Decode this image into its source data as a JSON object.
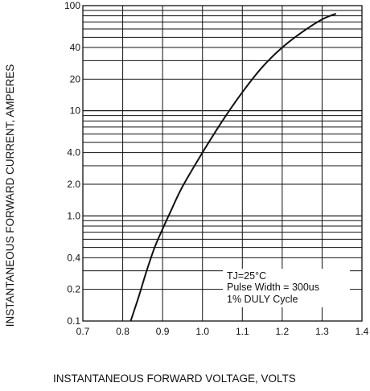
{
  "chart_data": {
    "type": "line",
    "xlabel": "INSTANTANEOUS FORWARD VOLTAGE, VOLTS",
    "ylabel": "INSTANTANEOUS FORWARD CURRENT, AMPERES",
    "x_scale": "linear",
    "y_scale": "log",
    "xlim": [
      0.7,
      1.4
    ],
    "ylim": [
      0.1,
      100
    ],
    "grid": true,
    "x_ticks": [
      "0.7",
      "0.8",
      "0.9",
      "1.0",
      "1.1",
      "1.2",
      "1.3",
      "1.4"
    ],
    "y_ticks": [
      {
        "value": 100,
        "label": "100"
      },
      {
        "value": 40,
        "label": "40"
      },
      {
        "value": 20,
        "label": "20"
      },
      {
        "value": 10,
        "label": "10"
      },
      {
        "value": 4,
        "label": "4.0"
      },
      {
        "value": 2,
        "label": "2.0"
      },
      {
        "value": 1,
        "label": "1.0"
      },
      {
        "value": 0.4,
        "label": "0.4"
      },
      {
        "value": 0.2,
        "label": "0.2"
      },
      {
        "value": 0.1,
        "label": "0.1"
      }
    ],
    "series": [
      {
        "x": [
          0.82,
          0.84,
          0.86,
          0.88,
          0.9,
          0.92,
          0.95,
          1.0,
          1.05,
          1.1,
          1.15,
          1.2,
          1.25,
          1.3,
          1.335
        ],
        "y": [
          0.1,
          0.17,
          0.3,
          0.5,
          0.75,
          1.1,
          1.9,
          4.0,
          8.0,
          15.0,
          26.0,
          40.0,
          56.0,
          74.0,
          84.0
        ]
      }
    ],
    "annotations": [
      "TJ=25°C",
      "Pulse Width = 300us",
      "1% DULY Cycle"
    ]
  }
}
